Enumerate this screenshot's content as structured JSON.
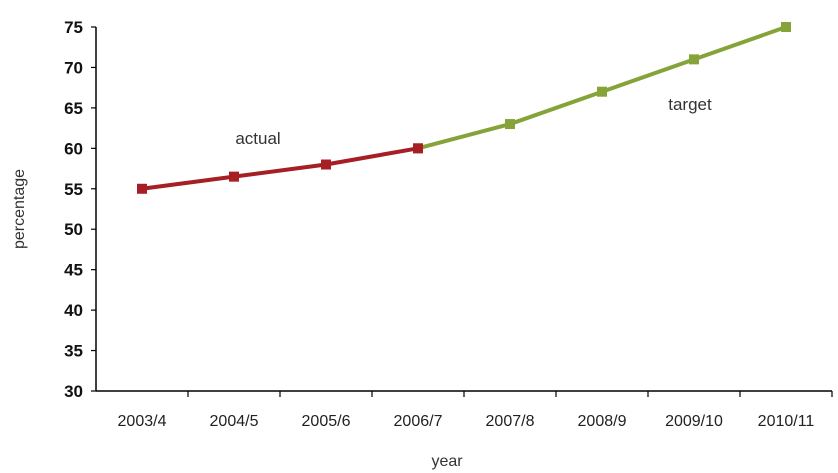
{
  "chart_data": {
    "type": "line",
    "title": "",
    "xlabel": "year",
    "ylabel": "percentage",
    "categories": [
      "2003/4",
      "2004/5",
      "2005/6",
      "2006/7",
      "2007/8",
      "2008/9",
      "2009/10",
      "2010/11"
    ],
    "ylim": [
      30,
      75
    ],
    "yticks": [
      30,
      35,
      40,
      45,
      50,
      55,
      60,
      65,
      70,
      75
    ],
    "grid": false,
    "series": [
      {
        "values": [
          55,
          56.5,
          58,
          60,
          null,
          null,
          null,
          null
        ],
        "color": "#a51f24"
      },
      {
        "values": [
          null,
          null,
          null,
          60,
          63,
          67,
          71,
          75
        ],
        "color": "#86a33a"
      }
    ],
    "annotations": [
      {
        "text": "actual",
        "series_index": 0
      },
      {
        "text": "target",
        "series_index": 1
      }
    ]
  }
}
